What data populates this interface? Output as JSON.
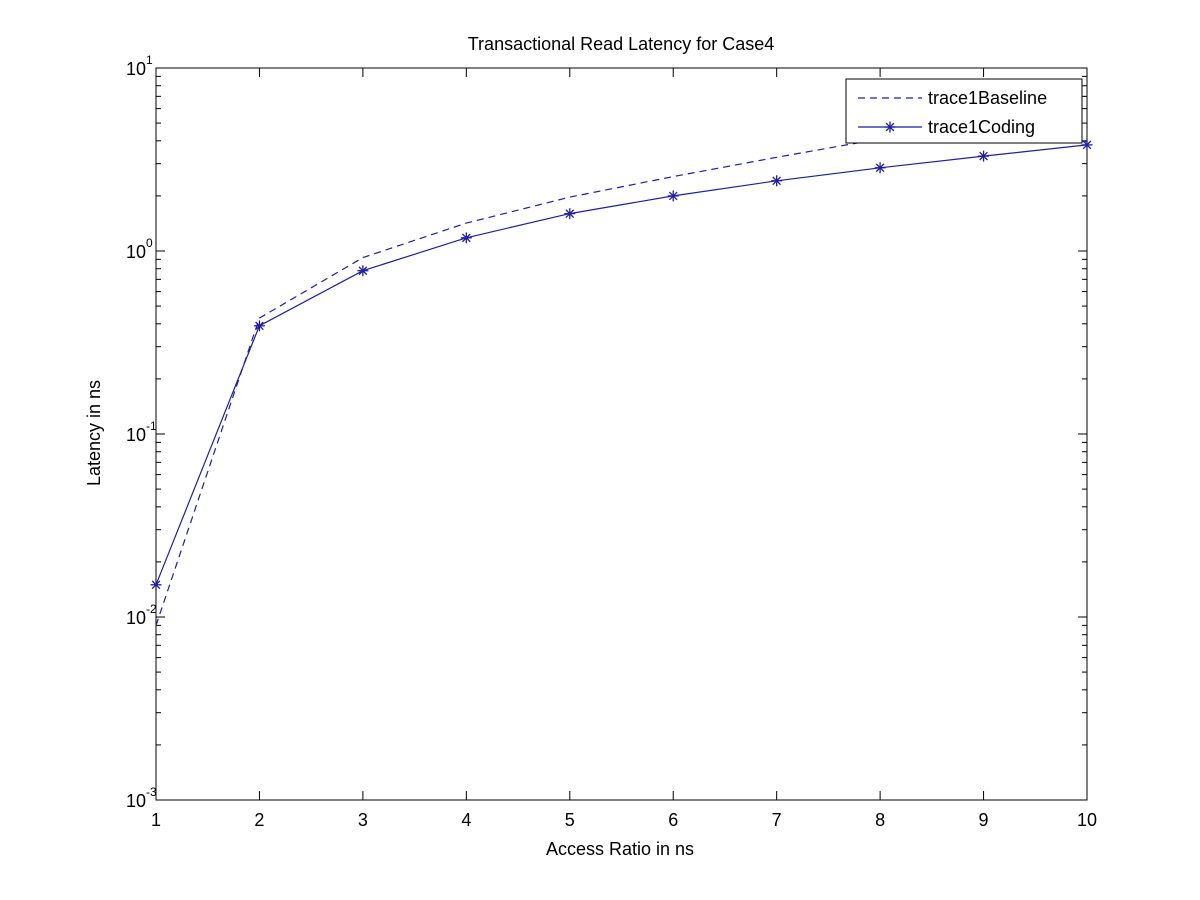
{
  "chart_data": {
    "type": "line",
    "title": "Transactional Read Latency for Case4",
    "xlabel": "Access Ratio in ns",
    "ylabel": "Latency in ns",
    "xlim": [
      1,
      10
    ],
    "ylim": [
      0.001,
      10
    ],
    "y_scale": "log",
    "x_ticks": [
      1,
      2,
      3,
      4,
      5,
      6,
      7,
      8,
      9,
      10
    ],
    "y_ticks": [
      {
        "base": "10",
        "exp": "-3",
        "value": 0.001
      },
      {
        "base": "10",
        "exp": "-2",
        "value": 0.01
      },
      {
        "base": "10",
        "exp": "-1",
        "value": 0.1
      },
      {
        "base": "10",
        "exp": "0",
        "value": 1
      },
      {
        "base": "10",
        "exp": "1",
        "value": 10
      }
    ],
    "grid": false,
    "legend_position": "top-right",
    "x": [
      1,
      2,
      3,
      4,
      5,
      6,
      7,
      8,
      9,
      10
    ],
    "series": [
      {
        "name": "trace1Baseline",
        "style": "dashed",
        "marker": "none",
        "color": "#1f1f9f",
        "values": [
          0.009,
          0.43,
          0.92,
          1.42,
          1.97,
          2.55,
          3.25,
          4.1,
          4.6,
          3.95
        ]
      },
      {
        "name": "trace1Coding",
        "style": "solid",
        "marker": "asterisk",
        "color": "#1f1f9f",
        "values": [
          0.015,
          0.39,
          0.78,
          1.18,
          1.6,
          2.0,
          2.42,
          2.85,
          3.3,
          3.8
        ]
      }
    ]
  }
}
